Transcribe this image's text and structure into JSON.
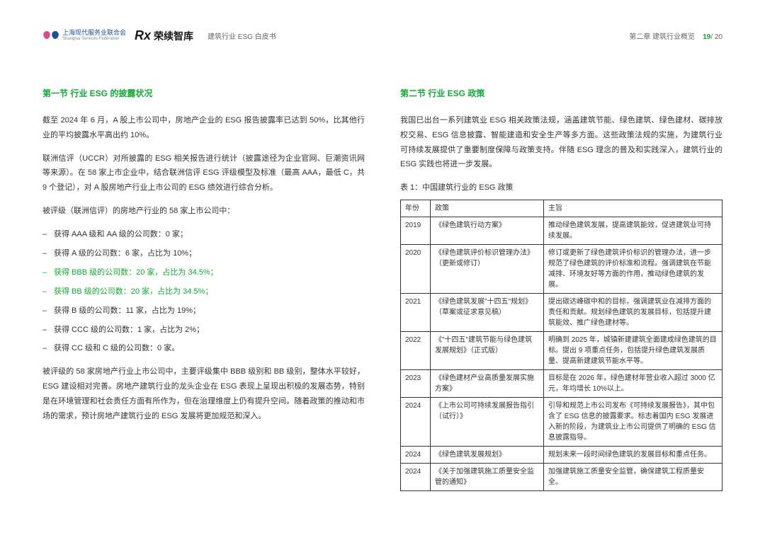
{
  "header": {
    "logo_ssf_cn": "上海现代服务业联合会",
    "logo_ssf_en": "Shanghai Services Federation",
    "logo_rx_icon": "Rx",
    "logo_rx_text": "荣续智库",
    "doc_title": "建筑行业 ESG 白皮书",
    "chapter": "第二章 建筑行业概览",
    "page_current": "19",
    "page_total": "/ 20"
  },
  "left": {
    "section_title": "第一节 行业 ESG 的披露状况",
    "p1": "截至 2024 年 6 月，A 股上市公司中，房地产企业的 ESG 报告披露率已达到 50%，比其他行业的平均披露水平高出约 10%。",
    "p2": "联洲信评（UCCR）对所披露的 ESG 相关报告进行统计（披露途径为企业官网、巨潮资讯网等来源）。在 58 家上市企业中，结合联洲信评 ESG 评级模型及标准（最高 AAA，最低 C，共 9 个登记），对 A 股房地产行业上市公司的 ESG 绩效进行综合分析。",
    "p3": "被评级（联洲信评）的房地产行业的 58 家上市公司中：",
    "items": [
      {
        "text": "获得 AAA 级和 AA 级的公司数：0 家；",
        "green": false
      },
      {
        "text": "获得 A 级的公司数：6 家，占比为 10%；",
        "green": false
      },
      {
        "text": "获得 BBB 级的公司数：20 家，占比为 34.5%；",
        "green": true
      },
      {
        "text": "获得 BB 级的公司数：20 家，占比为 34.5%；",
        "green": true
      },
      {
        "text": "获得 B 级的公司数：11 家，占比为 19%；",
        "green": false
      },
      {
        "text": "获得 CCC 级的公司数：1 家，占比为 2%；",
        "green": false
      },
      {
        "text": "获得 CC 级和 C 级的公司数：0 家。",
        "green": false
      }
    ],
    "p4": "被评级的 58 家房地产行业上市公司中，主要评级集中 BBB 级别和 BB 级别，整体水平较好，ESG 建设相对完善。房地产建筑行业的龙头企业在 ESG 表现上呈现出积极的发展态势，特别是在环境管理和社会责任方面有所作为，但在治理维度上仍有提升空间。随着政策的推动和市场的需求，预计房地产建筑行业的 ESG 发展将更加规范和深入。"
  },
  "right": {
    "section_title": "第二节 行业 ESG 政策",
    "p1": "我国已出台一系列建筑业 ESG 相关政策法规，涵盖建筑节能、绿色建筑、绿色建材、碳排放权交易、ESG 信息披露、智能建造和安全生产等多方面。这些政策法规的实施，为建筑行业可持续发展提供了重要制度保障与政策支持。伴随 ESG 理念的普及和实践深入，建筑行业的 ESG 实践也将进一步发展。",
    "table_caption": "表 1：中国建筑行业的 ESG 政策",
    "table": {
      "headers": [
        "年份",
        "政策",
        "主旨"
      ],
      "rows": [
        [
          "2019",
          "《绿色建筑行动方案》",
          "推动绿色建筑发展，提高建筑能效，促进建筑业可持续发展。"
        ],
        [
          "2020",
          "《绿色建筑评价标识管理办法》（更新或修订）",
          "修订或更新了绿色建筑评价标识的管理办法，进一步规范了绿色建筑的评价标准和流程。强调建筑在节能减排、环境友好等方面的作用，推动绿色建筑的发展。"
        ],
        [
          "2021",
          "《绿色建筑发展\"十四五\"规划》（草案或征求意见稿）",
          "提出碳达峰碳中和的目标，强调建筑业在减排方面的责任和贡献。规划绿色建筑的发展目标，包括提升建筑能效、推广绿色建材等。"
        ],
        [
          "2022",
          "《\"十四五\"建筑节能与绿色建筑发展规划》（正式版）",
          "明确到 2025 年，城镇新建建筑全面建成绿色建筑的目标。提出 9 项重点任务，包括提升绿色建筑发展质量、提高新建建筑节能水平等。"
        ],
        [
          "2023",
          "《绿色建材产业高质量发展实施方案》",
          "目标是在 2026 年，绿色建材年营业收入超过 3000 亿元，年均增长 10%以上。"
        ],
        [
          "2024",
          "《上市公司可持续发展报告指引（试行）》",
          "引导和规范上市公司发布《可持续发展报告》，其中包含了 ESG 信息的披露要求。标志着国内 ESG 发展进入新的阶段，为建筑业上市公司提供了明确的 ESG 信息披露指导。"
        ],
        [
          "2024",
          "《绿色建筑发展规划》",
          "规划未来一段时间绿色建筑的发展目标和重点任务。"
        ],
        [
          "2024",
          "《关于加强建筑施工质量安全监管的通知》",
          "加强建筑施工质量安全监管，确保建筑工程质量安全。"
        ]
      ]
    }
  },
  "colors": {
    "green": "#15a838",
    "text": "#333333",
    "logo_blue": "#1b4f9c"
  }
}
